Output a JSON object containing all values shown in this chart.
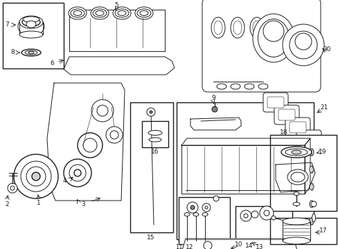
{
  "bg_color": "#ffffff",
  "line_color": "#1a1a1a",
  "fig_width": 4.89,
  "fig_height": 3.6,
  "dpi": 100,
  "lw_thick": 1.0,
  "lw_med": 0.7,
  "lw_thin": 0.4,
  "font_size": 6.5
}
